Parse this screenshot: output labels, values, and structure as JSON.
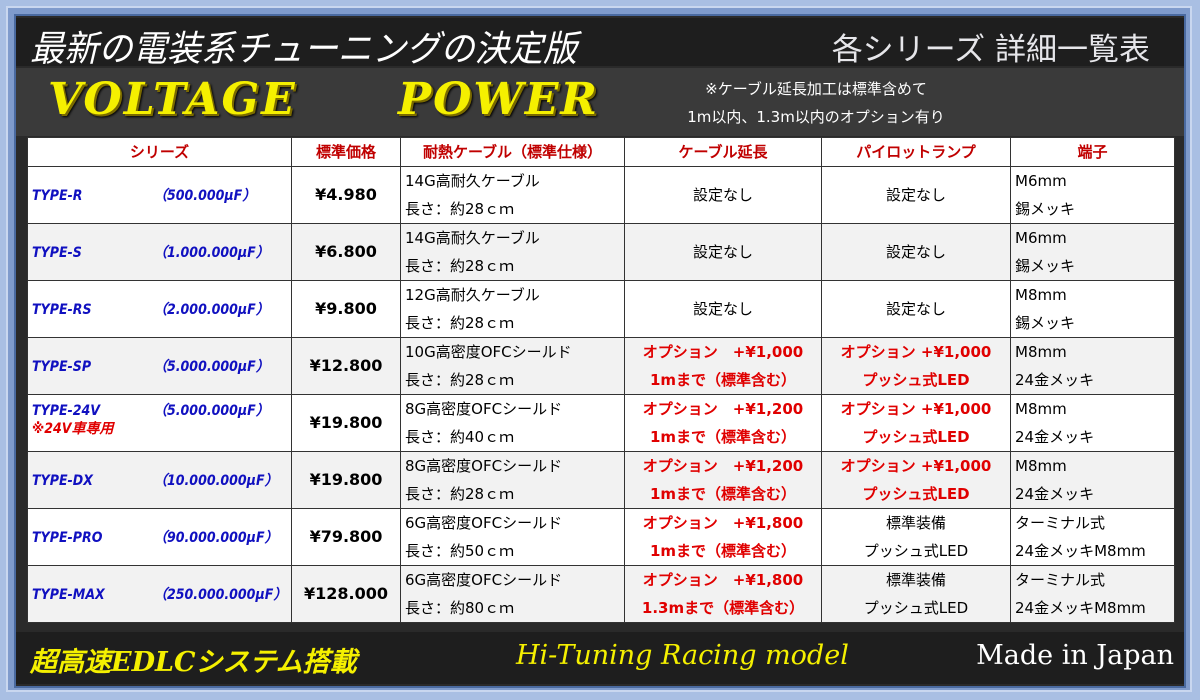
{
  "header": {
    "title": "最新の電装系チューニングの決定版",
    "subtitle": "各シリーズ 詳細一覧表",
    "logo_word1": "VOLTAGE",
    "logo_word2": "POWER",
    "note_line1": "※ケーブル延長加工は標準含めて",
    "note_line2": "1m以内、1.3m以内のオプション有り"
  },
  "table": {
    "columns": [
      "シリーズ",
      "標準価格",
      "耐熱ケーブル（標準仕様）",
      "ケーブル延長",
      "パイロットランプ",
      "端子"
    ],
    "rows": [
      {
        "series": "TYPE-R",
        "capacity": "（500.000μF）",
        "note": "",
        "price": "¥4.980",
        "cable": [
          "14G高耐久ケーブル",
          "長さ：約28ｃｍ"
        ],
        "ext": [
          "設定なし"
        ],
        "ext_red": false,
        "lamp": [
          "設定なし"
        ],
        "lamp_red": false,
        "terminal": [
          "M6mm",
          "錫メッキ"
        ]
      },
      {
        "series": "TYPE-S",
        "capacity": "（1.000.000μF）",
        "note": "",
        "price": "¥6.800",
        "cable": [
          "14G高耐久ケーブル",
          "長さ：約28ｃｍ"
        ],
        "ext": [
          "設定なし"
        ],
        "ext_red": false,
        "lamp": [
          "設定なし"
        ],
        "lamp_red": false,
        "terminal": [
          "M6mm",
          "錫メッキ"
        ]
      },
      {
        "series": "TYPE-RS",
        "capacity": "（2.000.000μF）",
        "note": "",
        "price": "¥9.800",
        "cable": [
          "12G高耐久ケーブル",
          "長さ：約28ｃｍ"
        ],
        "ext": [
          "設定なし"
        ],
        "ext_red": false,
        "lamp": [
          "設定なし"
        ],
        "lamp_red": false,
        "terminal": [
          "M8mm",
          "錫メッキ"
        ]
      },
      {
        "series": "TYPE-SP",
        "capacity": "（5.000.000μF）",
        "note": "",
        "price": "¥12.800",
        "cable": [
          "10G高密度OFCシールド",
          "長さ：約28ｃｍ"
        ],
        "ext": [
          "オプション　+¥1,000",
          "1mまで（標準含む）"
        ],
        "ext_red": true,
        "lamp": [
          "オプション +¥1,000",
          "プッシュ式LED"
        ],
        "lamp_red": true,
        "terminal": [
          "M8mm",
          "24金メッキ"
        ]
      },
      {
        "series": "TYPE-24V",
        "capacity": "（5.000.000μF）",
        "note": "※24V車専用",
        "price": "¥19.800",
        "cable": [
          "8G高密度OFCシールド",
          "長さ：約40ｃｍ"
        ],
        "ext": [
          "オプション　+¥1,200",
          "1mまで（標準含む）"
        ],
        "ext_red": true,
        "lamp": [
          "オプション +¥1,000",
          "プッシュ式LED"
        ],
        "lamp_red": true,
        "terminal": [
          "M8mm",
          "24金メッキ"
        ]
      },
      {
        "series": "TYPE-DX",
        "capacity": "（10.000.000μF）",
        "note": "",
        "price": "¥19.800",
        "cable": [
          "8G高密度OFCシールド",
          "長さ：約28ｃｍ"
        ],
        "ext": [
          "オプション　+¥1,200",
          "1mまで（標準含む）"
        ],
        "ext_red": true,
        "lamp": [
          "オプション +¥1,000",
          "プッシュ式LED"
        ],
        "lamp_red": true,
        "terminal": [
          "M8mm",
          "24金メッキ"
        ]
      },
      {
        "series": "TYPE-PRO",
        "capacity": "（90.000.000μF）",
        "note": "",
        "price": "¥79.800",
        "cable": [
          "6G高密度OFCシールド",
          "長さ：約50ｃｍ"
        ],
        "ext": [
          "オプション　+¥1,800",
          "1mまで（標準含む）"
        ],
        "ext_red": true,
        "lamp": [
          "標準装備",
          "プッシュ式LED"
        ],
        "lamp_red": false,
        "terminal": [
          "ターミナル式",
          "24金メッキM8mm"
        ]
      },
      {
        "series": "TYPE-MAX",
        "capacity": "（250.000.000μF）",
        "note": "",
        "price": "¥128.000",
        "cable": [
          "6G高密度OFCシールド",
          "長さ：約80ｃｍ"
        ],
        "ext": [
          "オプション　+¥1,800",
          "1.3mまで（標準含む）"
        ],
        "ext_red": true,
        "lamp": [
          "標準装備",
          "プッシュ式LED"
        ],
        "lamp_red": false,
        "terminal": [
          "ターミナル式",
          "24金メッキM8mm"
        ]
      }
    ]
  },
  "footer": {
    "left": "超高速EDLCシステム搭載",
    "middle": "Hi-Tuning  Racing model",
    "right": "Made in Japan"
  },
  "colors": {
    "logo_yellow": "#f5f000",
    "header_red": "#c00000",
    "series_blue": "#1010c0",
    "option_red": "#e00000",
    "frame_blue": "#7f9bcc"
  }
}
